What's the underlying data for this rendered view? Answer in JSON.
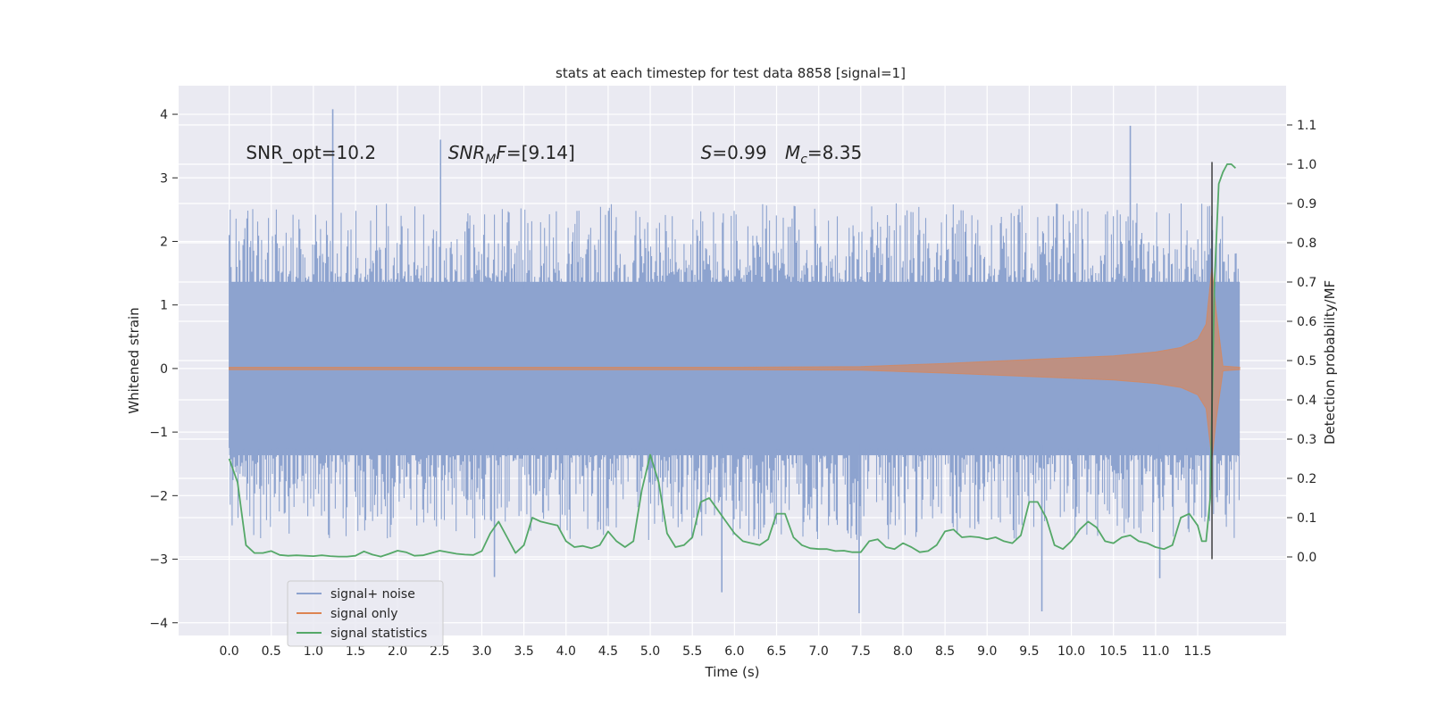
{
  "chart_data": {
    "type": "line",
    "title": "stats at each timestep for test data 8858 [signal=1]",
    "xlabel": "Time (s)",
    "ylabel": "Whitened strain",
    "y2label": "Detection probability/MF",
    "xlim": [
      -0.6,
      12.55
    ],
    "ylim": [
      -4.2,
      4.45
    ],
    "y2lim": [
      -0.2,
      1.2
    ],
    "xticks": [
      0.0,
      0.5,
      1.0,
      1.5,
      2.0,
      2.5,
      3.0,
      3.5,
      4.0,
      4.5,
      5.0,
      5.5,
      6.0,
      6.5,
      7.0,
      7.5,
      8.0,
      8.5,
      9.0,
      9.5,
      10.0,
      10.5,
      11.0,
      11.5
    ],
    "xtick_labels": [
      "0.0",
      "0.5",
      "1.0",
      "1.5",
      "2.0",
      "2.5",
      "3.0",
      "3.5",
      "4.0",
      "4.5",
      "5.0",
      "5.5",
      "6.0",
      "6.5",
      "7.0",
      "7.5",
      "8.0",
      "8.5",
      "9.0",
      "9.5",
      "10.0",
      "10.5",
      "11.0",
      "11.5"
    ],
    "yticks": [
      -4,
      -3,
      -2,
      -1,
      0,
      1,
      2,
      3,
      4
    ],
    "ytick_labels": [
      "−4",
      "−3",
      "−2",
      "−1",
      "0",
      "1",
      "2",
      "3",
      "4"
    ],
    "y2ticks": [
      0.0,
      0.1,
      0.2,
      0.3,
      0.4,
      0.5,
      0.6,
      0.7,
      0.8,
      0.9,
      1.0,
      1.1
    ],
    "y2tick_labels": [
      "0.0",
      "0.1",
      "0.2",
      "0.3",
      "0.4",
      "0.5",
      "0.6",
      "0.7",
      "0.8",
      "0.9",
      "1.0",
      "1.1"
    ],
    "grid": true,
    "legend_position": "lower-left",
    "annotations": [
      {
        "x": 0.2,
        "y": 3.3,
        "text": "SNR_opt=10.2"
      },
      {
        "x": 2.6,
        "y": 3.3,
        "text": "SNR_MF=[9.14]"
      },
      {
        "x": 5.6,
        "y": 3.3,
        "text": "S=0.99"
      },
      {
        "x": 6.6,
        "y": 3.3,
        "text": "M_c=8.35"
      }
    ],
    "series": [
      {
        "name": "signal+ noise",
        "color": "#8da3cf",
        "x_range": [
          0.0,
          12.0
        ],
        "band_envelope_y": [
          -1.75,
          1.75
        ],
        "peak_extremes": [
          {
            "x": 1.23,
            "y": 4.08
          },
          {
            "x": 2.51,
            "y": 3.6
          },
          {
            "x": 10.7,
            "y": 3.82
          },
          {
            "x": 7.48,
            "y": -3.85
          },
          {
            "x": 9.65,
            "y": -3.82
          },
          {
            "x": 3.15,
            "y": -3.28
          },
          {
            "x": 5.85,
            "y": -3.52
          },
          {
            "x": 11.05,
            "y": -3.3
          }
        ]
      },
      {
        "name": "signal only",
        "color": "#dd8452",
        "x_range": [
          0.0,
          12.0
        ],
        "envelope": [
          {
            "x": 0.0,
            "y": 0.02
          },
          {
            "x": 6.0,
            "y": 0.02
          },
          {
            "x": 7.5,
            "y": 0.03
          },
          {
            "x": 8.5,
            "y": 0.08
          },
          {
            "x": 9.5,
            "y": 0.14
          },
          {
            "x": 10.5,
            "y": 0.2
          },
          {
            "x": 11.0,
            "y": 0.26
          },
          {
            "x": 11.3,
            "y": 0.33
          },
          {
            "x": 11.5,
            "y": 0.46
          },
          {
            "x": 11.6,
            "y": 0.7
          },
          {
            "x": 11.67,
            "y": 1.6
          },
          {
            "x": 11.72,
            "y": 0.9
          },
          {
            "x": 11.8,
            "y": 0.04
          },
          {
            "x": 12.0,
            "y": 0.02
          }
        ]
      },
      {
        "name": "signal statistics",
        "color": "#55a868",
        "axis": "right",
        "x": [
          0.0,
          0.1,
          0.2,
          0.3,
          0.4,
          0.5,
          0.6,
          0.7,
          0.8,
          0.9,
          1.0,
          1.1,
          1.2,
          1.3,
          1.4,
          1.5,
          1.6,
          1.7,
          1.8,
          1.9,
          2.0,
          2.1,
          2.2,
          2.3,
          2.4,
          2.5,
          2.6,
          2.7,
          2.8,
          2.9,
          3.0,
          3.1,
          3.2,
          3.3,
          3.4,
          3.5,
          3.6,
          3.7,
          3.8,
          3.9,
          4.0,
          4.1,
          4.2,
          4.3,
          4.4,
          4.5,
          4.6,
          4.7,
          4.8,
          4.9,
          5.0,
          5.1,
          5.2,
          5.3,
          5.4,
          5.5,
          5.6,
          5.7,
          5.8,
          5.9,
          6.0,
          6.1,
          6.2,
          6.3,
          6.4,
          6.5,
          6.6,
          6.7,
          6.8,
          6.9,
          7.0,
          7.1,
          7.2,
          7.3,
          7.4,
          7.5,
          7.6,
          7.7,
          7.8,
          7.9,
          8.0,
          8.1,
          8.2,
          8.3,
          8.4,
          8.5,
          8.6,
          8.7,
          8.8,
          8.9,
          9.0,
          9.1,
          9.2,
          9.3,
          9.4,
          9.5,
          9.6,
          9.7,
          9.8,
          9.9,
          10.0,
          10.1,
          10.2,
          10.3,
          10.4,
          10.5,
          10.6,
          10.7,
          10.8,
          10.9,
          11.0,
          11.1,
          11.2,
          11.3,
          11.4,
          11.5,
          11.55,
          11.6,
          11.65,
          11.7,
          11.75,
          11.8,
          11.85,
          11.9,
          11.95
        ],
        "values": [
          0.25,
          0.19,
          0.03,
          0.01,
          0.01,
          0.015,
          0.005,
          0.003,
          0.004,
          0.003,
          0.002,
          0.004,
          0.002,
          0.001,
          0.001,
          0.003,
          0.014,
          0.006,
          0.001,
          0.008,
          0.016,
          0.012,
          0.003,
          0.004,
          0.01,
          0.016,
          0.012,
          0.008,
          0.006,
          0.005,
          0.015,
          0.06,
          0.09,
          0.05,
          0.01,
          0.03,
          0.1,
          0.09,
          0.085,
          0.08,
          0.04,
          0.025,
          0.028,
          0.022,
          0.03,
          0.065,
          0.04,
          0.025,
          0.04,
          0.17,
          0.26,
          0.19,
          0.06,
          0.025,
          0.03,
          0.05,
          0.14,
          0.15,
          0.12,
          0.09,
          0.06,
          0.04,
          0.035,
          0.03,
          0.045,
          0.11,
          0.11,
          0.05,
          0.03,
          0.022,
          0.02,
          0.02,
          0.015,
          0.016,
          0.012,
          0.012,
          0.04,
          0.045,
          0.025,
          0.02,
          0.035,
          0.025,
          0.012,
          0.015,
          0.03,
          0.065,
          0.07,
          0.05,
          0.052,
          0.05,
          0.045,
          0.05,
          0.04,
          0.035,
          0.055,
          0.14,
          0.14,
          0.1,
          0.03,
          0.02,
          0.04,
          0.07,
          0.09,
          0.075,
          0.04,
          0.035,
          0.05,
          0.055,
          0.04,
          0.035,
          0.025,
          0.02,
          0.03,
          0.1,
          0.11,
          0.08,
          0.04,
          0.04,
          0.15,
          0.7,
          0.95,
          0.98,
          1.0,
          1.0,
          0.99
        ]
      }
    ],
    "vertical_marker_x": 11.67
  }
}
